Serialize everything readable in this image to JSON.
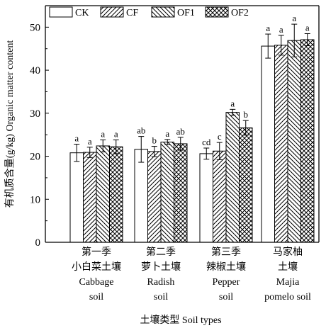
{
  "chart_data": {
    "type": "bar",
    "xlabel": "土壤类型 Soil types",
    "ylabel": "有机质含量(g/kg) Organic matter content",
    "ylim": [
      0,
      55
    ],
    "yticks": [
      0,
      10,
      20,
      30,
      40,
      50
    ],
    "grid": false,
    "legend_position": "top-left",
    "categories": [
      [
        "第一季",
        "小白菜土壤",
        "Cabbage",
        "soil"
      ],
      [
        "第二季",
        "萝卜土壤",
        "Radish",
        "soil"
      ],
      [
        "第三季",
        "辣椒土壤",
        "Pepper",
        "soil"
      ],
      [
        "马家柚",
        "土壤",
        "Majia",
        "pomelo soil"
      ]
    ],
    "series": [
      {
        "name": "CK",
        "pattern": "none",
        "values": [
          20.8,
          21.6,
          20.6,
          45.6
        ],
        "errors": [
          2.0,
          3.0,
          1.3,
          2.8
        ],
        "letters": [
          "a",
          "ab",
          "cd",
          "a"
        ]
      },
      {
        "name": "CF",
        "pattern": "fwd",
        "values": [
          20.9,
          21.1,
          21.2,
          45.8
        ],
        "errors": [
          1.2,
          1.2,
          2.0,
          2.3
        ],
        "letters": [
          "a",
          "b",
          "c",
          "a"
        ]
      },
      {
        "name": "OF1",
        "pattern": "back",
        "values": [
          22.4,
          23.3,
          30.2,
          46.9
        ],
        "errors": [
          1.4,
          0.6,
          0.7,
          3.8
        ],
        "letters": [
          "a",
          "a",
          "a",
          "a"
        ]
      },
      {
        "name": "OF2",
        "pattern": "cross",
        "values": [
          22.2,
          22.9,
          26.6,
          47.1
        ],
        "errors": [
          1.6,
          1.5,
          1.7,
          1.4
        ],
        "letters": [
          "a",
          "ab",
          "b",
          "a"
        ]
      }
    ]
  }
}
